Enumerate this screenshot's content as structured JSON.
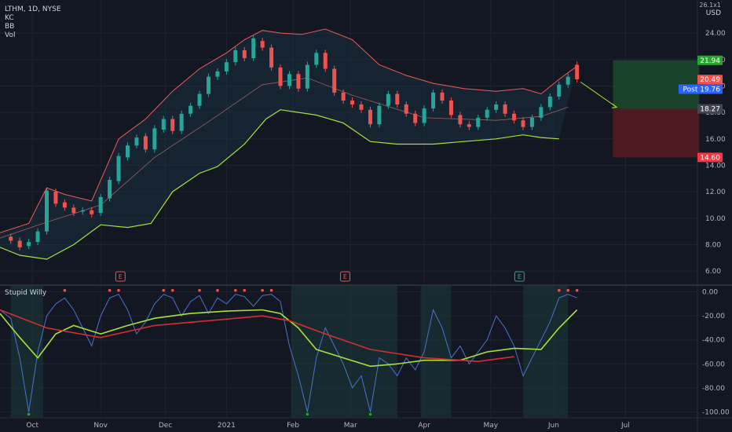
{
  "header": {
    "symbol_line": "LTHM, 1D, NYSE",
    "indicators": [
      "KC",
      "BB",
      "Vol"
    ],
    "currency": "USD",
    "top_right_value": "26.1x1"
  },
  "oscillator": {
    "name": "Stupid Willy"
  },
  "colors": {
    "background": "#131722",
    "grid": "#1f2330",
    "up": "#26a69a",
    "down": "#ef5350",
    "kc_band": "#f05c56",
    "bb_lower": "#a6e33a",
    "profit_zone": "#1a4a2c",
    "loss_zone": "#5a1a22"
  },
  "chart_data": [
    {
      "type": "candlestick",
      "title": "LTHM, 1D, NYSE",
      "ylim": [
        5.0,
        26.5
      ],
      "y_ticks": [
        6.0,
        8.0,
        10.0,
        12.0,
        14.0,
        16.0,
        18.0,
        20.0,
        22.0,
        24.0
      ],
      "x_ticks": [
        "Oct",
        "Nov",
        "Dec",
        "2021",
        "Feb",
        "Mar",
        "Apr",
        "May",
        "Jun",
        "Jul"
      ],
      "x_tick_days": [
        22,
        60,
        96,
        130,
        167,
        199,
        240,
        277,
        312,
        352
      ],
      "x_range_days": [
        4,
        392
      ],
      "series_upper_band": [
        [
          4,
          8.9
        ],
        [
          20,
          9.6
        ],
        [
          30,
          12.3
        ],
        [
          40,
          11.8
        ],
        [
          55,
          11.3
        ],
        [
          70,
          16.0
        ],
        [
          85,
          17.5
        ],
        [
          100,
          19.6
        ],
        [
          115,
          21.3
        ],
        [
          130,
          22.5
        ],
        [
          140,
          23.5
        ],
        [
          150,
          24.2
        ],
        [
          160,
          24.0
        ],
        [
          172,
          23.9
        ],
        [
          185,
          24.3
        ],
        [
          200,
          23.5
        ],
        [
          215,
          21.6
        ],
        [
          230,
          20.8
        ],
        [
          245,
          20.2
        ],
        [
          262,
          19.8
        ],
        [
          280,
          19.6
        ],
        [
          295,
          19.8
        ],
        [
          305,
          19.4
        ],
        [
          315,
          20.5
        ],
        [
          325,
          21.5
        ]
      ],
      "series_lower_band": [
        [
          4,
          7.8
        ],
        [
          15,
          7.2
        ],
        [
          30,
          6.9
        ],
        [
          45,
          8.0
        ],
        [
          60,
          9.5
        ],
        [
          75,
          9.3
        ],
        [
          88,
          9.6
        ],
        [
          100,
          12.0
        ],
        [
          115,
          13.4
        ],
        [
          125,
          13.9
        ],
        [
          140,
          15.6
        ],
        [
          152,
          17.5
        ],
        [
          160,
          18.2
        ],
        [
          170,
          18.0
        ],
        [
          180,
          17.8
        ],
        [
          195,
          17.2
        ],
        [
          210,
          15.8
        ],
        [
          225,
          15.6
        ],
        [
          245,
          15.6
        ],
        [
          262,
          15.8
        ],
        [
          280,
          16.0
        ],
        [
          295,
          16.3
        ],
        [
          305,
          16.1
        ],
        [
          315,
          16.0
        ]
      ],
      "series_mid_band": [
        [
          4,
          8.5
        ],
        [
          30,
          9.7
        ],
        [
          60,
          11.0
        ],
        [
          90,
          14.6
        ],
        [
          120,
          17.3
        ],
        [
          150,
          20.1
        ],
        [
          175,
          20.6
        ],
        [
          200,
          19.3
        ],
        [
          240,
          17.6
        ],
        [
          280,
          17.4
        ],
        [
          305,
          17.7
        ],
        [
          320,
          18.4
        ]
      ],
      "candles": [
        [
          10,
          8.6,
          8.3
        ],
        [
          15,
          8.3,
          7.8
        ],
        [
          20,
          7.9,
          8.2
        ],
        [
          25,
          8.2,
          9.0
        ],
        [
          30,
          9.0,
          12.1
        ],
        [
          35,
          12.0,
          11.1
        ],
        [
          40,
          11.2,
          10.8
        ],
        [
          45,
          10.8,
          10.4
        ],
        [
          50,
          10.5,
          10.6
        ],
        [
          55,
          10.6,
          10.3
        ],
        [
          60,
          10.4,
          11.6
        ],
        [
          65,
          11.5,
          12.9
        ],
        [
          70,
          12.8,
          14.7
        ],
        [
          75,
          14.6,
          15.5
        ],
        [
          80,
          15.5,
          16.1
        ],
        [
          85,
          16.2,
          15.2
        ],
        [
          90,
          15.2,
          16.8
        ],
        [
          95,
          16.7,
          17.5
        ],
        [
          100,
          17.5,
          16.6
        ],
        [
          105,
          16.6,
          17.9
        ],
        [
          110,
          17.9,
          18.5
        ],
        [
          115,
          18.5,
          19.4
        ],
        [
          120,
          19.4,
          20.7
        ],
        [
          125,
          20.7,
          21.1
        ],
        [
          130,
          21.1,
          21.8
        ],
        [
          135,
          21.8,
          22.7
        ],
        [
          140,
          22.7,
          22.1
        ],
        [
          145,
          22.1,
          23.6
        ],
        [
          150,
          23.4,
          22.9
        ],
        [
          155,
          22.9,
          21.4
        ],
        [
          160,
          21.4,
          20.0
        ],
        [
          165,
          20.0,
          20.9
        ],
        [
          170,
          20.9,
          19.8
        ],
        [
          175,
          19.8,
          21.6
        ],
        [
          180,
          21.6,
          22.5
        ],
        [
          185,
          22.5,
          21.3
        ],
        [
          190,
          21.3,
          19.5
        ],
        [
          195,
          19.5,
          18.9
        ],
        [
          200,
          18.9,
          18.6
        ],
        [
          205,
          18.6,
          18.2
        ],
        [
          210,
          18.2,
          17.1
        ],
        [
          215,
          17.1,
          18.5
        ],
        [
          220,
          18.5,
          19.4
        ],
        [
          225,
          19.4,
          18.6
        ],
        [
          230,
          18.6,
          17.9
        ],
        [
          235,
          17.9,
          17.2
        ],
        [
          240,
          17.2,
          18.3
        ],
        [
          245,
          18.3,
          19.5
        ],
        [
          250,
          19.5,
          18.9
        ],
        [
          255,
          18.9,
          17.8
        ],
        [
          260,
          17.8,
          17.1
        ],
        [
          265,
          17.1,
          16.9
        ],
        [
          270,
          16.9,
          17.6
        ],
        [
          275,
          17.6,
          18.2
        ],
        [
          280,
          18.2,
          18.6
        ],
        [
          285,
          18.6,
          17.9
        ],
        [
          290,
          17.9,
          17.4
        ],
        [
          295,
          17.4,
          16.9
        ],
        [
          300,
          16.9,
          17.6
        ],
        [
          305,
          17.6,
          18.4
        ],
        [
          310,
          18.4,
          19.2
        ],
        [
          315,
          19.2,
          20.1
        ],
        [
          320,
          20.1,
          20.7
        ],
        [
          325,
          21.6,
          20.5
        ]
      ],
      "price_labels": [
        {
          "text": "21.94",
          "value": 21.94,
          "color": "#26a62d"
        },
        {
          "text": "20.49",
          "value": 20.49,
          "color": "#ef5350"
        },
        {
          "text": "Post  19.76",
          "value": 19.76,
          "color": "#2962ff"
        },
        {
          "text": "18.27",
          "value": 18.27,
          "color": "#434651"
        },
        {
          "text": "14.60",
          "value": 14.6,
          "color": "#f23645"
        }
      ],
      "position_tool": {
        "entry": 18.27,
        "target": 21.94,
        "stop": 14.6,
        "day_start": 345,
        "day_end": 393
      },
      "earnings_markers_days": [
        71,
        196,
        293
      ],
      "earnings_label": "E"
    },
    {
      "type": "line",
      "title": "Stupid Willy",
      "ylim": [
        -105,
        5
      ],
      "y_ticks": [
        0.0,
        -20.0,
        -40.0,
        -60.0,
        -80.0,
        -100.0
      ],
      "series": [
        {
          "name": "",
          "color": "#4a74c9",
          "values": [
            [
              4,
              -15
            ],
            [
              10,
              -22
            ],
            [
              15,
              -55
            ],
            [
              20,
              -100
            ],
            [
              25,
              -50
            ],
            [
              30,
              -20
            ],
            [
              35,
              -10
            ],
            [
              40,
              -5
            ],
            [
              45,
              -15
            ],
            [
              50,
              -30
            ],
            [
              55,
              -45
            ],
            [
              60,
              -20
            ],
            [
              65,
              -5
            ],
            [
              70,
              -2
            ],
            [
              75,
              -15
            ],
            [
              80,
              -35
            ],
            [
              85,
              -25
            ],
            [
              90,
              -10
            ],
            [
              95,
              -2
            ],
            [
              100,
              -5
            ],
            [
              105,
              -20
            ],
            [
              110,
              -8
            ],
            [
              115,
              -3
            ],
            [
              120,
              -18
            ],
            [
              125,
              -5
            ],
            [
              130,
              -10
            ],
            [
              135,
              -2
            ],
            [
              140,
              -4
            ],
            [
              145,
              -12
            ],
            [
              150,
              -3
            ],
            [
              155,
              -2
            ],
            [
              160,
              -8
            ],
            [
              165,
              -45
            ],
            [
              170,
              -70
            ],
            [
              175,
              -100
            ],
            [
              180,
              -55
            ],
            [
              185,
              -30
            ],
            [
              190,
              -45
            ],
            [
              195,
              -60
            ],
            [
              200,
              -80
            ],
            [
              205,
              -70
            ],
            [
              210,
              -100
            ],
            [
              215,
              -55
            ],
            [
              220,
              -60
            ],
            [
              225,
              -70
            ],
            [
              230,
              -55
            ],
            [
              235,
              -65
            ],
            [
              240,
              -50
            ],
            [
              245,
              -15
            ],
            [
              250,
              -30
            ],
            [
              255,
              -55
            ],
            [
              260,
              -45
            ],
            [
              265,
              -60
            ],
            [
              270,
              -50
            ],
            [
              275,
              -40
            ],
            [
              280,
              -20
            ],
            [
              285,
              -30
            ],
            [
              290,
              -45
            ],
            [
              295,
              -70
            ],
            [
              300,
              -55
            ],
            [
              305,
              -40
            ],
            [
              310,
              -25
            ],
            [
              315,
              -5
            ],
            [
              320,
              -2
            ],
            [
              325,
              -5
            ]
          ]
        },
        {
          "name": "",
          "color": "#a6e33a",
          "values": [
            [
              4,
              -18
            ],
            [
              15,
              -38
            ],
            [
              25,
              -55
            ],
            [
              35,
              -35
            ],
            [
              45,
              -28
            ],
            [
              60,
              -35
            ],
            [
              75,
              -28
            ],
            [
              90,
              -22
            ],
            [
              110,
              -18
            ],
            [
              130,
              -16
            ],
            [
              150,
              -15
            ],
            [
              160,
              -18
            ],
            [
              170,
              -30
            ],
            [
              180,
              -48
            ],
            [
              195,
              -55
            ],
            [
              210,
              -62
            ],
            [
              225,
              -60
            ],
            [
              240,
              -57
            ],
            [
              260,
              -57
            ],
            [
              275,
              -50
            ],
            [
              290,
              -47
            ],
            [
              305,
              -48
            ],
            [
              315,
              -30
            ],
            [
              325,
              -15
            ]
          ]
        },
        {
          "name": "",
          "color": "#d42f2f",
          "values": [
            [
              4,
              -15
            ],
            [
              30,
              -30
            ],
            [
              60,
              -38
            ],
            [
              90,
              -28
            ],
            [
              120,
              -24
            ],
            [
              150,
              -20
            ],
            [
              165,
              -24
            ],
            [
              185,
              -35
            ],
            [
              210,
              -48
            ],
            [
              240,
              -55
            ],
            [
              270,
              -58
            ],
            [
              290,
              -54
            ]
          ]
        }
      ]
    }
  ]
}
